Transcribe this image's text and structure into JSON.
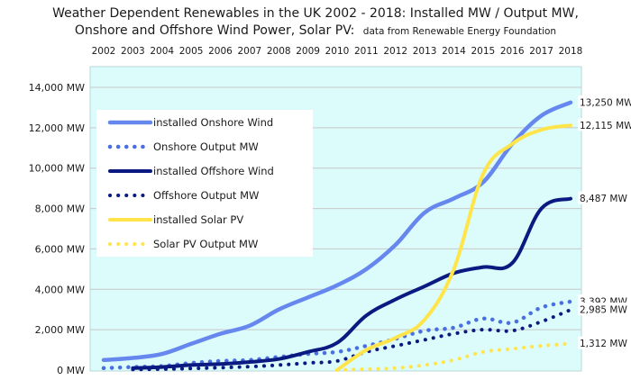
{
  "chart_data": {
    "type": "line",
    "title_line1": "Weather Dependent Renewables in the UK 2002 - 2018:  Installed MW / Output MW,",
    "title_line2_main": "Onshore and Offshore Wind Power, Solar PV:",
    "title_line2_source": "data from Renewable Energy Foundation",
    "x": [
      2002,
      2003,
      2004,
      2005,
      2006,
      2007,
      2008,
      2009,
      2010,
      2011,
      2012,
      2013,
      2014,
      2015,
      2016,
      2017,
      2018
    ],
    "x_tick_labels": [
      "2002",
      "2003",
      "2004",
      "2005",
      "2006",
      "2007",
      "2008",
      "2009",
      "2010",
      "2011",
      "2012",
      "2013",
      "2014",
      "2015",
      "2016",
      "2017",
      "2018"
    ],
    "ylim": [
      0,
      14000
    ],
    "y_ticks": [
      0,
      2000,
      4000,
      6000,
      8000,
      10000,
      12000,
      14000
    ],
    "y_tick_labels": [
      "0 MW",
      "2,000 MW",
      "4,000 MW",
      "6,000 MW",
      "8,000 MW",
      "10,000 MW",
      "12,000 MW",
      "14,000 MW"
    ],
    "grid": true,
    "legend_position": "upper-left",
    "plot_background": "#dcfbfb",
    "series": [
      {
        "name": "installed Onshore Wind",
        "color": "#6688ee",
        "style": "solid",
        "width": 4.5,
        "values": [
          500,
          600,
          800,
          1300,
          1800,
          2200,
          3000,
          3600,
          4200,
          5000,
          6200,
          7800,
          8500,
          9300,
          11200,
          12600,
          13250
        ],
        "end_label": "13,250 MW"
      },
      {
        "name": "Onshore Output MW",
        "color": "#4a6fe0",
        "style": "dotted",
        "width": 4.5,
        "values": [
          100,
          150,
          200,
          350,
          450,
          500,
          650,
          800,
          900,
          1200,
          1550,
          1950,
          2100,
          2550,
          2350,
          3100,
          3392
        ],
        "end_label": "3,392 MW"
      },
      {
        "name": "installed Offshore Wind",
        "color": "#0a1a80",
        "style": "solid",
        "width": 4,
        "values": [
          null,
          100,
          150,
          250,
          300,
          400,
          550,
          900,
          1350,
          2700,
          3500,
          4150,
          4800,
          5100,
          5300,
          8000,
          8487
        ],
        "end_label": "8,487 MW"
      },
      {
        "name": "Offshore Output MW",
        "color": "#0a1a80",
        "style": "dotted",
        "width": 4,
        "values": [
          null,
          30,
          50,
          80,
          120,
          170,
          250,
          350,
          450,
          900,
          1200,
          1500,
          1800,
          2000,
          1950,
          2400,
          2985
        ],
        "end_label": "2,985 MW"
      },
      {
        "name": "installed Solar PV",
        "color": "#ffe44a",
        "style": "solid",
        "width": 4,
        "values": [
          null,
          null,
          null,
          null,
          null,
          null,
          null,
          null,
          0,
          1000,
          1600,
          2500,
          5000,
          9700,
          11200,
          11900,
          12115
        ],
        "end_label": "12,115 MW"
      },
      {
        "name": "Solar PV Output MW",
        "color": "#ffe44a",
        "style": "dotted",
        "width": 4,
        "values": [
          null,
          null,
          null,
          null,
          null,
          null,
          null,
          null,
          0,
          50,
          100,
          250,
          500,
          900,
          1050,
          1200,
          1312
        ],
        "end_label": "1,312 MW"
      }
    ]
  }
}
